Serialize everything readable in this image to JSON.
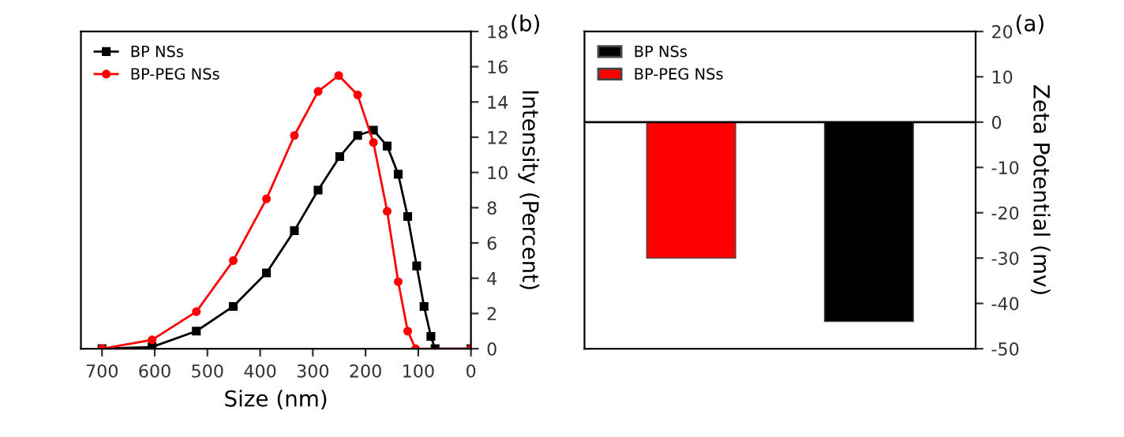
{
  "chart_data": [
    {
      "type": "line",
      "title": "(b)",
      "xlabel": "Size (nm)",
      "ylabel": "Intensity (Percent)",
      "xlim": [
        740,
        0
      ],
      "xticks": [
        0,
        100,
        200,
        300,
        400,
        500,
        600,
        700
      ],
      "ylim": [
        0,
        18
      ],
      "yticks": [
        0,
        2,
        4,
        6,
        8,
        10,
        12,
        14,
        16,
        18
      ],
      "legend": "top left",
      "grid": false,
      "series": [
        {
          "name": "BP NSs",
          "color": "#000000",
          "marker": "square",
          "x": [
            700,
            605,
            521,
            451,
            388,
            335,
            290,
            249,
            215,
            185,
            159,
            138,
            120,
            103,
            89,
            76,
            68,
            0
          ],
          "values": [
            0,
            0.1,
            1.0,
            2.4,
            4.3,
            6.7,
            9.0,
            10.9,
            12.1,
            12.4,
            11.5,
            9.9,
            7.5,
            4.7,
            2.4,
            0.7,
            0,
            0
          ]
        },
        {
          "name": "BP-PEG NSs",
          "color": "#ff0000",
          "marker": "circle",
          "x": [
            700,
            605,
            521,
            451,
            388,
            335,
            290,
            251,
            215,
            185,
            159,
            138,
            120,
            105,
            0
          ],
          "values": [
            0,
            0.5,
            2.1,
            5.0,
            8.5,
            12.1,
            14.6,
            15.5,
            14.4,
            11.7,
            7.8,
            3.8,
            1.0,
            0,
            0
          ]
        }
      ]
    },
    {
      "type": "bar",
      "title": "(a)",
      "ylabel": "Zeta Potential (mv)",
      "categories": [
        null,
        null
      ],
      "ylim": [
        -50,
        20
      ],
      "yticks": [
        -50,
        -40,
        -30,
        -20,
        -10,
        0,
        10,
        20
      ],
      "tick_labels": "y",
      "legend": "top left",
      "grid": false,
      "ref_lines": [
        {
          "axis": "y",
          "value": 0,
          "color": "#000000"
        }
      ],
      "series": [
        {
          "name": "BP NSs",
          "color": "#000000",
          "values": [
            null,
            -44
          ]
        },
        {
          "name": "BP-PEG NSs",
          "color": "#ff0000",
          "values": [
            -30,
            null
          ]
        }
      ]
    }
  ]
}
